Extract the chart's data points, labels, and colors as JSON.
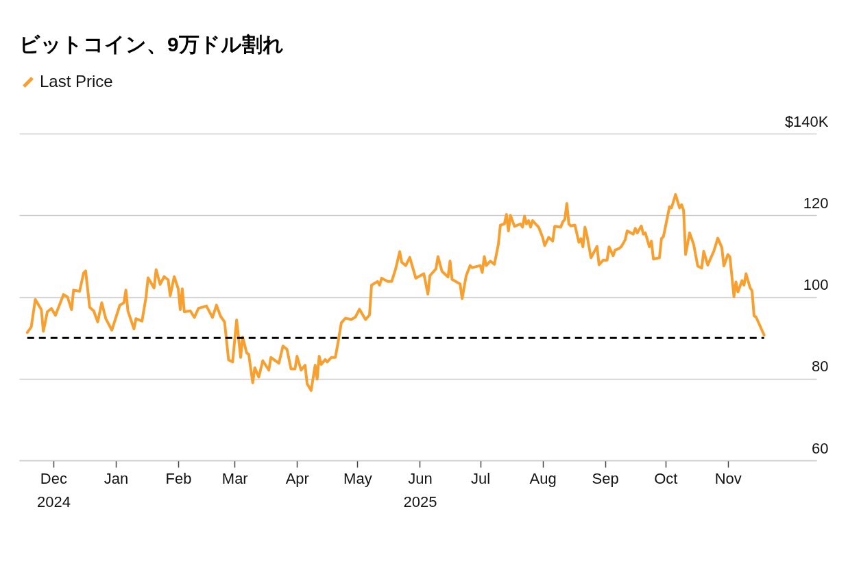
{
  "chart_data": {
    "type": "line",
    "title": "ビットコイン、9万ドル割れ",
    "xlim": [
      "2024-11-14",
      "2025-12-15"
    ],
    "xticks": [
      {
        "value": "2024-12-01",
        "label": "Dec\n2024"
      },
      {
        "value": "2025-01-01",
        "label": "Jan"
      },
      {
        "value": "2025-02-01",
        "label": "Feb"
      },
      {
        "value": "2025-03-01",
        "label": "Mar"
      },
      {
        "value": "2025-04-01",
        "label": "Apr"
      },
      {
        "value": "2025-05-01",
        "label": "May"
      },
      {
        "value": "2025-06-01",
        "label": "Jun\n2025"
      },
      {
        "value": "2025-07-01",
        "label": "Jul"
      },
      {
        "value": "2025-08-01",
        "label": "Aug"
      },
      {
        "value": "2025-09-01",
        "label": "Sep"
      },
      {
        "value": "2025-10-01",
        "label": "Oct"
      },
      {
        "value": "2025-11-01",
        "label": "Nov"
      }
    ],
    "ylim": [
      60,
      140
    ],
    "yticks": [
      60,
      80,
      100,
      120,
      {
        "value": 140,
        "label": "$140K"
      }
    ],
    "grid": "y",
    "legend": "top left",
    "x": [
      "2024-11-18",
      "2024-11-20",
      "2024-11-22",
      "2024-11-25",
      "2024-11-26",
      "2024-11-28",
      "2024-11-30",
      "2024-12-02",
      "2024-12-06",
      "2024-12-08",
      "2024-12-10",
      "2024-12-11",
      "2024-12-14",
      "2024-12-16",
      "2024-12-17",
      "2024-12-19",
      "2024-12-21",
      "2024-12-23",
      "2024-12-25",
      "2024-12-27",
      "2024-12-30",
      "2025-01-03",
      "2025-01-05",
      "2025-01-06",
      "2025-01-07",
      "2025-01-10",
      "2025-01-11",
      "2025-01-14",
      "2025-01-16",
      "2025-01-17",
      "2025-01-20",
      "2025-01-21",
      "2025-01-23",
      "2025-01-25",
      "2025-01-27",
      "2025-01-28",
      "2025-01-30",
      "2025-02-01",
      "2025-02-02",
      "2025-02-03",
      "2025-02-04",
      "2025-02-07",
      "2025-02-09",
      "2025-02-11",
      "2025-02-13",
      "2025-02-15",
      "2025-02-18",
      "2025-02-20",
      "2025-02-22",
      "2025-02-24",
      "2025-02-26",
      "2025-02-28",
      "2025-03-02",
      "2025-03-04",
      "2025-03-05",
      "2025-03-07",
      "2025-03-08",
      "2025-03-10",
      "2025-03-11",
      "2025-03-13",
      "2025-03-15",
      "2025-03-18",
      "2025-03-19",
      "2025-03-23",
      "2025-03-25",
      "2025-03-27",
      "2025-03-29",
      "2025-03-31",
      "2025-04-01",
      "2025-04-03",
      "2025-04-05",
      "2025-04-06",
      "2025-04-08",
      "2025-04-10",
      "2025-04-11",
      "2025-04-12",
      "2025-04-13",
      "2025-04-15",
      "2025-04-16",
      "2025-04-18",
      "2025-04-20",
      "2025-04-21",
      "2025-04-23",
      "2025-04-25",
      "2025-04-28",
      "2025-04-30",
      "2025-05-02",
      "2025-05-05",
      "2025-05-07",
      "2025-05-08",
      "2025-05-11",
      "2025-05-12",
      "2025-05-13",
      "2025-05-16",
      "2025-05-18",
      "2025-05-20",
      "2025-05-22",
      "2025-05-23",
      "2025-05-25",
      "2025-05-27",
      "2025-05-30",
      "2025-06-03",
      "2025-06-05",
      "2025-06-06",
      "2025-06-09",
      "2025-06-10",
      "2025-06-12",
      "2025-06-15",
      "2025-06-16",
      "2025-06-17",
      "2025-06-21",
      "2025-06-22",
      "2025-06-24",
      "2025-06-26",
      "2025-06-27",
      "2025-07-01",
      "2025-07-02",
      "2025-07-03",
      "2025-07-04",
      "2025-07-06",
      "2025-07-08",
      "2025-07-10",
      "2025-07-11",
      "2025-07-13",
      "2025-07-14",
      "2025-07-15",
      "2025-07-16",
      "2025-07-18",
      "2025-07-21",
      "2025-07-22",
      "2025-07-23",
      "2025-07-24",
      "2025-07-25",
      "2025-07-26",
      "2025-07-27",
      "2025-07-30",
      "2025-08-01",
      "2025-08-02",
      "2025-08-04",
      "2025-08-06",
      "2025-08-07",
      "2025-08-10",
      "2025-08-11",
      "2025-08-12",
      "2025-08-13",
      "2025-08-14",
      "2025-08-15",
      "2025-08-17",
      "2025-08-19",
      "2025-08-20",
      "2025-08-21",
      "2025-08-22",
      "2025-08-23",
      "2025-08-25",
      "2025-08-28",
      "2025-08-29",
      "2025-08-31",
      "2025-09-02",
      "2025-09-03",
      "2025-09-05",
      "2025-09-06",
      "2025-09-08",
      "2025-09-09",
      "2025-09-11",
      "2025-09-12",
      "2025-09-15",
      "2025-09-16",
      "2025-09-17",
      "2025-09-19",
      "2025-09-20",
      "2025-09-21",
      "2025-09-23",
      "2025-09-24",
      "2025-09-25",
      "2025-09-28",
      "2025-09-29",
      "2025-09-30",
      "2025-10-03",
      "2025-10-04",
      "2025-10-06",
      "2025-10-08",
      "2025-10-09",
      "2025-10-10",
      "2025-10-11",
      "2025-10-13",
      "2025-10-15",
      "2025-10-17",
      "2025-10-19",
      "2025-10-20",
      "2025-10-22",
      "2025-10-24",
      "2025-10-25",
      "2025-10-27",
      "2025-10-29",
      "2025-10-30",
      "2025-11-01",
      "2025-11-02",
      "2025-11-04",
      "2025-11-05",
      "2025-11-06",
      "2025-11-08",
      "2025-11-09",
      "2025-11-10",
      "2025-11-12",
      "2025-11-13",
      "2025-11-14",
      "2025-11-15",
      "2025-11-19"
    ],
    "series": [
      {
        "name": "Last Price",
        "color": "#f7a030",
        "values": [
          91.3,
          92.7,
          99.4,
          96.9,
          91.6,
          96.4,
          97.2,
          95.5,
          100.6,
          100,
          96.9,
          101.7,
          101.4,
          105.9,
          106.4,
          97.5,
          96.6,
          93.9,
          98.6,
          94.7,
          91.9,
          98,
          98.6,
          101.7,
          96.6,
          92.2,
          94.7,
          94.1,
          100,
          104.7,
          102.2,
          106.7,
          103.1,
          105,
          104.2,
          100.3,
          105,
          102,
          96.9,
          102,
          96.4,
          96.6,
          95,
          97.2,
          97.5,
          97.8,
          95,
          98,
          95.3,
          93.9,
          84.6,
          84.1,
          94.4,
          85.2,
          90.2,
          86.3,
          86,
          79,
          82.7,
          80.4,
          84.4,
          82.1,
          85.2,
          83.8,
          88,
          87.2,
          82.4,
          82.4,
          85.5,
          82.1,
          83.3,
          78.8,
          77.1,
          83.3,
          79.9,
          85.5,
          83.5,
          84.7,
          84.1,
          85.2,
          85.2,
          87.8,
          93.7,
          94.8,
          94.5,
          95.1,
          97,
          94.5,
          95.6,
          102.9,
          103.8,
          102.9,
          104.6,
          103.8,
          103.8,
          106.9,
          111.1,
          108.5,
          107.7,
          109.7,
          104.6,
          105.7,
          100.7,
          105.2,
          106.9,
          109.9,
          106.3,
          104.9,
          108.8,
          104.3,
          103.2,
          99.6,
          105.2,
          107.7,
          107.2,
          107.7,
          106,
          109.9,
          107.7,
          108.8,
          108,
          112.9,
          117.6,
          117.9,
          120.2,
          116.2,
          120,
          117.3,
          117.9,
          117.1,
          119.8,
          117.9,
          118.7,
          117.1,
          118.7,
          117.1,
          114.6,
          112.6,
          114.6,
          113.7,
          117.3,
          117.1,
          118.4,
          119,
          122.9,
          117.9,
          117.4,
          117.6,
          113.4,
          114.3,
          112.3,
          117.1,
          115.1,
          109.6,
          112.4,
          107.9,
          109,
          109,
          112.3,
          110.1,
          111.5,
          111.9,
          112.3,
          114,
          116.2,
          115.4,
          116.8,
          115.7,
          117.4,
          115.4,
          115.7,
          112.3,
          113.7,
          109.3,
          109.6,
          114.3,
          114.8,
          122.1,
          121.8,
          125.1,
          121.8,
          122.6,
          121.2,
          110.4,
          115.7,
          112.9,
          107.6,
          107.1,
          111.2,
          107.8,
          110.1,
          111.2,
          114.4,
          112.1,
          107.6,
          110.4,
          109.8,
          100.1,
          103.7,
          101.2,
          104,
          102.9,
          105.7,
          102.3,
          101.5,
          95.4,
          95.1,
          90.7
        ]
      }
    ],
    "ref_lines": [
      {
        "axis": "y",
        "value": 90,
        "color": "#000000",
        "line_style": "dashed"
      }
    ]
  }
}
